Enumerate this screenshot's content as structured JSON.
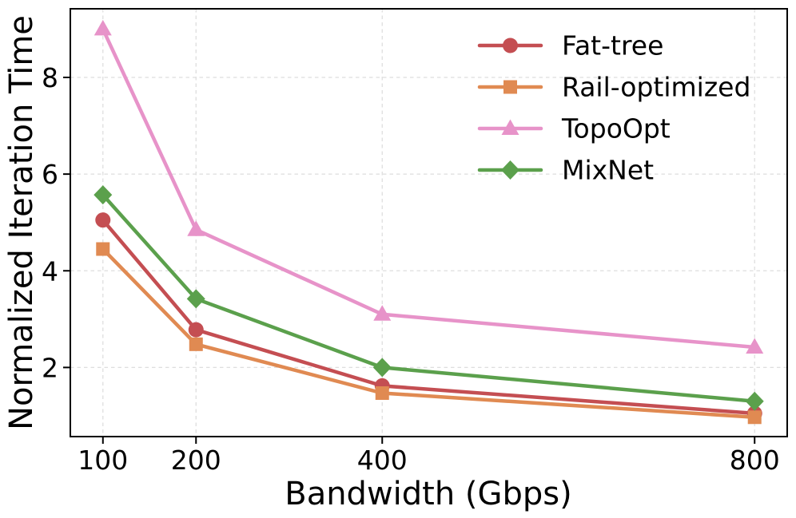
{
  "chart_data": {
    "type": "line",
    "title": "",
    "xlabel": "Bandwidth (Gbps)",
    "ylabel": "Normalized Iteration Time",
    "x": [
      100,
      200,
      400,
      800
    ],
    "xtick_labels": [
      "100",
      "200",
      "400",
      "800"
    ],
    "ytick_values": [
      2,
      4,
      6,
      8
    ],
    "ytick_labels": [
      "2",
      "4",
      "6",
      "8"
    ],
    "xlim": [
      65,
      835
    ],
    "ylim": [
      0.57,
      9.42
    ],
    "grid": "dashed",
    "grid_color": "#dedede",
    "axis_color": "#000000",
    "background_color": "#ffffff",
    "legend_position": "upper-right",
    "legend_frame": false,
    "series": [
      {
        "name": "Fat-tree",
        "color": "#c44e52",
        "marker": "circle",
        "values": [
          5.05,
          2.78,
          1.62,
          1.05
        ]
      },
      {
        "name": "Rail-optimized",
        "color": "#e08a52",
        "marker": "square",
        "values": [
          4.45,
          2.48,
          1.47,
          0.97
        ]
      },
      {
        "name": "TopoOpt",
        "color": "#e793c9",
        "marker": "triangle",
        "values": [
          9.0,
          4.85,
          3.1,
          2.42
        ]
      },
      {
        "name": "MixNet",
        "color": "#5ba04c",
        "marker": "diamond",
        "values": [
          5.57,
          3.42,
          2.0,
          1.3
        ]
      }
    ]
  }
}
